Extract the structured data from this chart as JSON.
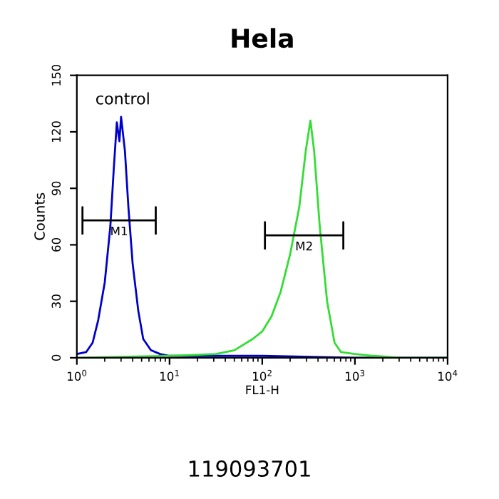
{
  "chart_data": {
    "type": "line",
    "title": "Hela",
    "xlabel": "FL1-H",
    "ylabel": "Counts",
    "log": "x",
    "xlim": [
      1,
      10000
    ],
    "xticks": [
      {
        "value": 1,
        "label": "10$^{0}$"
      },
      {
        "value": 10,
        "label": "10$^{1}$"
      },
      {
        "value": 100,
        "label": "10$^{2}$"
      },
      {
        "value": 1000,
        "label": "10$^{3}$"
      },
      {
        "value": 10000,
        "label": "10$^{4}$"
      }
    ],
    "ylim": [
      0,
      150
    ],
    "yticks": [
      0,
      30,
      60,
      90,
      120,
      150
    ],
    "grid": false,
    "legend": false,
    "marker": "none",
    "line_style": "solid",
    "series": [
      {
        "color": "#0000cc",
        "x": [
          1,
          1.26,
          1.48,
          1.7,
          2.0,
          2.3,
          2.5,
          2.7,
          2.88,
          3.0,
          3.3,
          3.6,
          4.0,
          4.6,
          5.2,
          6.3,
          7.9,
          10,
          31.6,
          100,
          1000,
          10000
        ],
        "values": [
          2,
          3,
          8,
          20,
          40,
          70,
          100,
          125,
          115,
          128,
          110,
          80,
          50,
          25,
          10,
          4,
          2,
          1,
          1,
          1,
          0,
          0
        ]
      },
      {
        "color": "#33dd33",
        "x": [
          1,
          10,
          31.6,
          50,
          79,
          100,
          126,
          158,
          200,
          251,
          295,
          331,
          363,
          417,
          501,
          603,
          708,
          1000,
          1585,
          3162,
          10000
        ],
        "values": [
          0,
          1,
          2,
          4,
          10,
          14,
          22,
          35,
          55,
          80,
          110,
          126,
          110,
          70,
          30,
          8,
          3,
          2,
          1,
          0,
          0
        ]
      },
      {
        "color": "#000000",
        "x": [
          1.15,
          1.15,
          1.15,
          7.1,
          7.1,
          7.1
        ],
        "values": [
          66,
          80,
          73,
          73,
          80,
          66
        ]
      },
      {
        "color": "#000000",
        "x": [
          107,
          107,
          107,
          750,
          750,
          750
        ],
        "values": [
          58,
          72,
          65,
          65,
          72,
          58
        ]
      }
    ],
    "annotations": [
      "control",
      "M1",
      "M2",
      "119093701"
    ]
  }
}
